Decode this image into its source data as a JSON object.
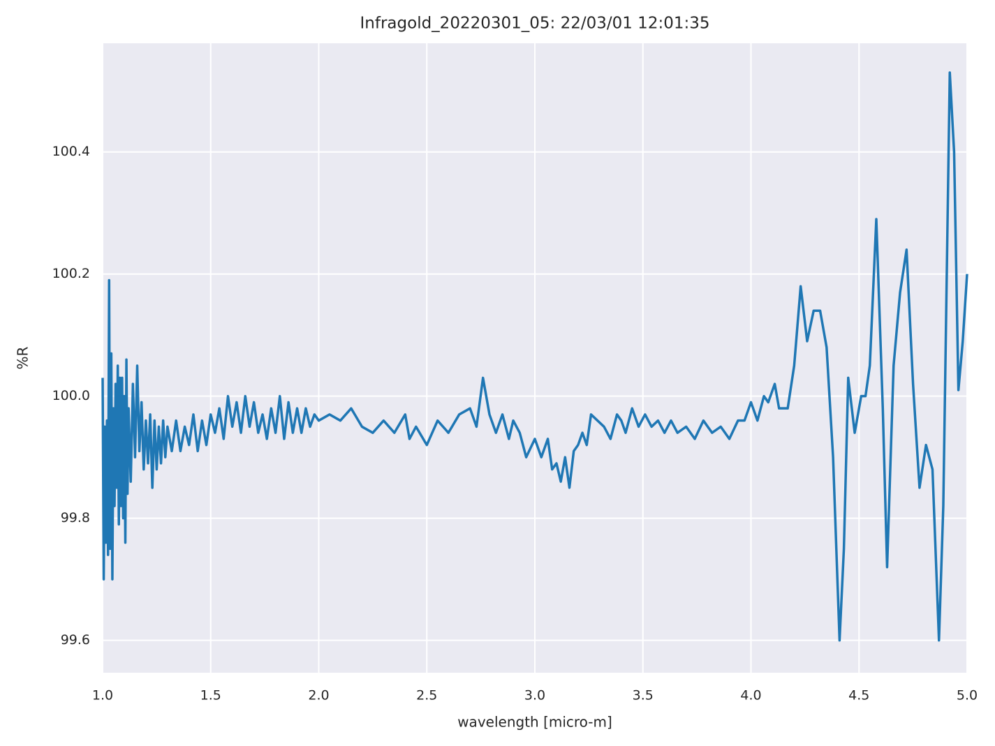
{
  "chart_data": {
    "type": "line",
    "title": "Infragold_20220301_05:  22/03/01 12:01:35",
    "xlabel": "wavelength [micro-m]",
    "ylabel": "%R",
    "color": "#1f77b4",
    "grid": true,
    "xlim": [
      1.0,
      5.0
    ],
    "ylim": [
      99.547,
      100.578
    ],
    "xticks": [
      {
        "value": 1.0,
        "label": "1.0"
      },
      1.5,
      {
        "value": 2.0,
        "label": "2.0"
      },
      2.5,
      {
        "value": 3.0,
        "label": "3.0"
      },
      3.5,
      {
        "value": 4.0,
        "label": "4.0"
      },
      4.5,
      {
        "value": 5.0,
        "label": "5.0"
      }
    ],
    "yticks": [
      99.6,
      99.8,
      {
        "value": 100.0,
        "label": "100.0"
      },
      100.2,
      100.4
    ],
    "x": [
      1.0,
      1.005,
      1.01,
      1.015,
      1.02,
      1.025,
      1.03,
      1.035,
      1.04,
      1.045,
      1.05,
      1.055,
      1.06,
      1.065,
      1.07,
      1.075,
      1.08,
      1.085,
      1.09,
      1.095,
      1.1,
      1.105,
      1.11,
      1.115,
      1.12,
      1.13,
      1.14,
      1.15,
      1.16,
      1.17,
      1.18,
      1.19,
      1.2,
      1.21,
      1.22,
      1.23,
      1.24,
      1.25,
      1.26,
      1.27,
      1.28,
      1.29,
      1.3,
      1.32,
      1.34,
      1.36,
      1.38,
      1.4,
      1.42,
      1.44,
      1.46,
      1.48,
      1.5,
      1.52,
      1.54,
      1.56,
      1.58,
      1.6,
      1.62,
      1.64,
      1.66,
      1.68,
      1.7,
      1.72,
      1.74,
      1.76,
      1.78,
      1.8,
      1.82,
      1.84,
      1.86,
      1.88,
      1.9,
      1.92,
      1.94,
      1.96,
      1.98,
      2.0,
      2.05,
      2.1,
      2.15,
      2.2,
      2.25,
      2.3,
      2.35,
      2.4,
      2.42,
      2.45,
      2.5,
      2.55,
      2.6,
      2.65,
      2.7,
      2.73,
      2.76,
      2.79,
      2.82,
      2.85,
      2.88,
      2.9,
      2.93,
      2.96,
      3.0,
      3.03,
      3.06,
      3.08,
      3.1,
      3.12,
      3.14,
      3.16,
      3.18,
      3.2,
      3.22,
      3.24,
      3.26,
      3.29,
      3.32,
      3.35,
      3.38,
      3.4,
      3.42,
      3.45,
      3.48,
      3.51,
      3.54,
      3.57,
      3.6,
      3.63,
      3.66,
      3.7,
      3.74,
      3.78,
      3.82,
      3.86,
      3.9,
      3.94,
      3.97,
      4.0,
      4.03,
      4.06,
      4.08,
      4.11,
      4.13,
      4.17,
      4.2,
      4.23,
      4.26,
      4.29,
      4.32,
      4.35,
      4.38,
      4.41,
      4.43,
      4.45,
      4.48,
      4.51,
      4.53,
      4.55,
      4.58,
      4.61,
      4.63,
      4.66,
      4.69,
      4.72,
      4.75,
      4.78,
      4.81,
      4.84,
      4.87,
      4.89,
      4.92,
      4.94,
      4.96,
      4.98,
      5.0
    ],
    "values": [
      100.03,
      99.7,
      99.95,
      99.76,
      99.96,
      99.74,
      100.19,
      99.75,
      100.07,
      99.7,
      99.98,
      99.82,
      100.02,
      99.85,
      100.05,
      99.79,
      100.03,
      99.82,
      100.03,
      99.8,
      100.0,
      99.76,
      100.06,
      99.84,
      99.98,
      99.86,
      100.02,
      99.9,
      100.05,
      99.91,
      99.99,
      99.88,
      99.96,
      99.89,
      99.97,
      99.85,
      99.96,
      99.88,
      99.95,
      99.89,
      99.96,
      99.9,
      99.95,
      99.91,
      99.96,
      99.91,
      99.95,
      99.92,
      99.97,
      99.91,
      99.96,
      99.92,
      99.97,
      99.94,
      99.98,
      99.93,
      100.0,
      99.95,
      99.99,
      99.94,
      100.0,
      99.95,
      99.99,
      99.94,
      99.97,
      99.93,
      99.98,
      99.94,
      100.0,
      99.93,
      99.99,
      99.94,
      99.98,
      99.94,
      99.98,
      99.95,
      99.97,
      99.96,
      99.97,
      99.96,
      99.98,
      99.95,
      99.94,
      99.96,
      99.94,
      99.97,
      99.93,
      99.95,
      99.92,
      99.96,
      99.94,
      99.97,
      99.98,
      99.95,
      100.03,
      99.97,
      99.94,
      99.97,
      99.93,
      99.96,
      99.94,
      99.9,
      99.93,
      99.9,
      99.93,
      99.88,
      99.89,
      99.86,
      99.9,
      99.85,
      99.91,
      99.92,
      99.94,
      99.92,
      99.97,
      99.96,
      99.95,
      99.93,
      99.97,
      99.96,
      99.94,
      99.98,
      99.95,
      99.97,
      99.95,
      99.96,
      99.94,
      99.96,
      99.94,
      99.95,
      99.93,
      99.96,
      99.94,
      99.95,
      99.93,
      99.96,
      99.96,
      99.99,
      99.96,
      100.0,
      99.99,
      100.02,
      99.98,
      99.98,
      100.05,
      100.18,
      100.09,
      100.14,
      100.14,
      100.08,
      99.9,
      99.6,
      99.75,
      100.03,
      99.94,
      100.0,
      100.0,
      100.05,
      100.29,
      99.98,
      99.72,
      100.05,
      100.17,
      100.24,
      100.02,
      99.85,
      99.92,
      99.88,
      99.6,
      99.82,
      100.53,
      100.4,
      100.01,
      100.09,
      100.2
    ]
  }
}
